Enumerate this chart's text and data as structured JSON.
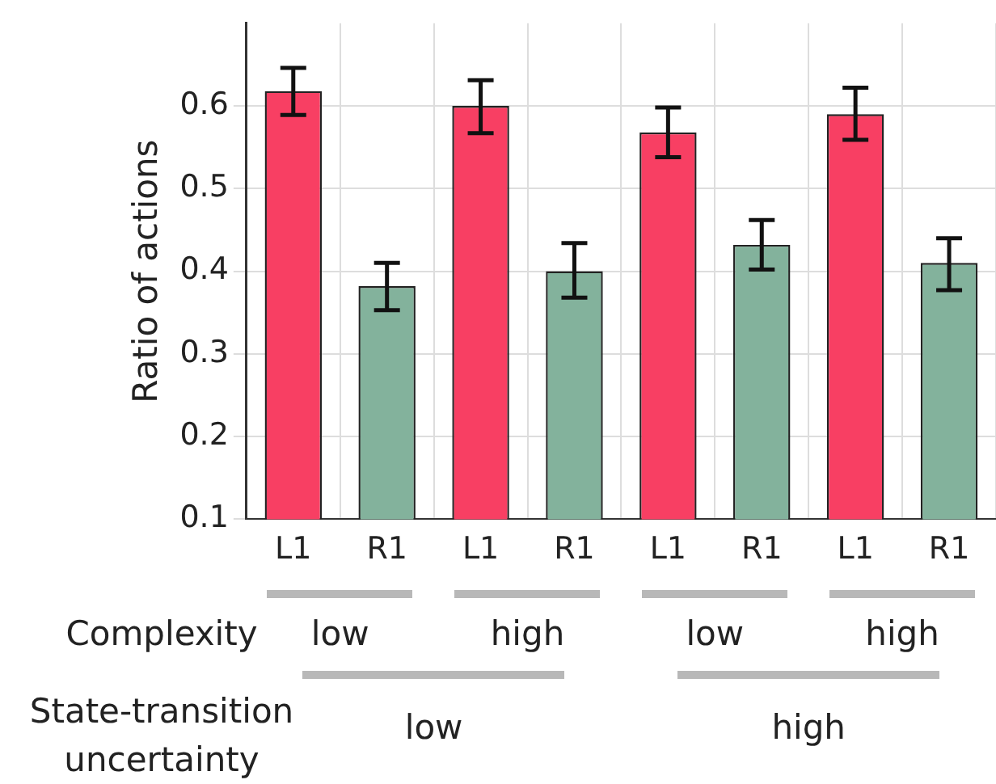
{
  "chart_data": {
    "type": "bar",
    "ylabel": "Ratio of actions",
    "categories": [
      "L1",
      "R1",
      "L1",
      "R1",
      "L1",
      "R1",
      "L1",
      "R1"
    ],
    "values": [
      0.618,
      0.382,
      0.6,
      0.4,
      0.568,
      0.432,
      0.59,
      0.41
    ],
    "colors": [
      "#f83f63",
      "#83b29c",
      "#f83f63",
      "#83b29c",
      "#f83f63",
      "#83b29c",
      "#f83f63",
      "#83b29c"
    ],
    "errors": [
      [
        0.589,
        0.646
      ],
      [
        0.353,
        0.41
      ],
      [
        0.567,
        0.631
      ],
      [
        0.368,
        0.434
      ],
      [
        0.538,
        0.598
      ],
      [
        0.402,
        0.462
      ],
      [
        0.559,
        0.622
      ],
      [
        0.377,
        0.44
      ]
    ],
    "ylim": [
      0.1,
      0.7
    ],
    "yticks": [
      0.1,
      0.2,
      0.3,
      0.4,
      0.5,
      0.6
    ],
    "grid": true,
    "legend": false,
    "annotations": [
      "Complexity",
      "low",
      "high",
      "low",
      "high",
      "State-transition uncertainty",
      "low",
      "high"
    ]
  }
}
